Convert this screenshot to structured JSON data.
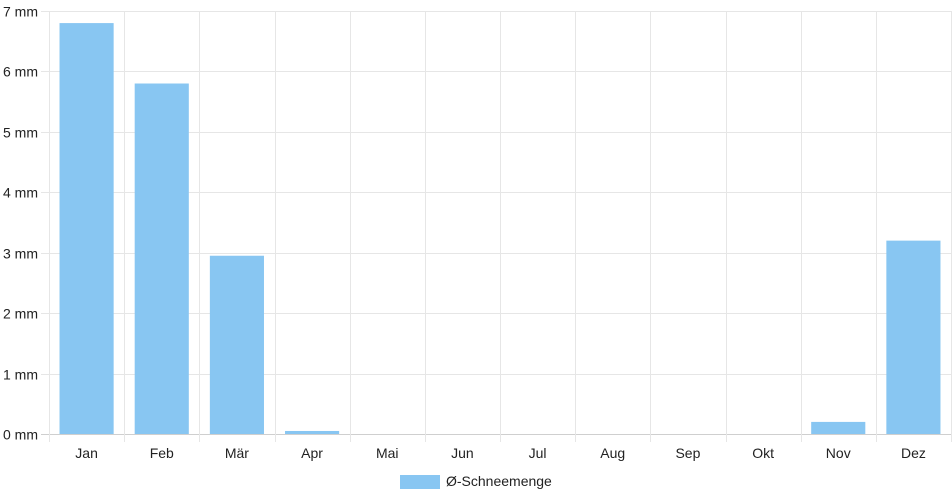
{
  "chart_data": {
    "type": "bar",
    "categories": [
      "Jan",
      "Feb",
      "Mär",
      "Apr",
      "Mai",
      "Jun",
      "Jul",
      "Aug",
      "Sep",
      "Okt",
      "Nov",
      "Dez"
    ],
    "series": [
      {
        "name": "Ø-Schneemenge",
        "color": "#88c6f2",
        "values": [
          6.8,
          5.8,
          2.95,
          0.05,
          0,
          0,
          0,
          0,
          0,
          0,
          0.2,
          3.2
        ]
      }
    ],
    "ylim": [
      0,
      7
    ],
    "yticks": [
      0,
      1,
      2,
      3,
      4,
      5,
      6,
      7
    ],
    "ytick_suffix": " mm",
    "grid": true,
    "legend": "bottom-center"
  }
}
